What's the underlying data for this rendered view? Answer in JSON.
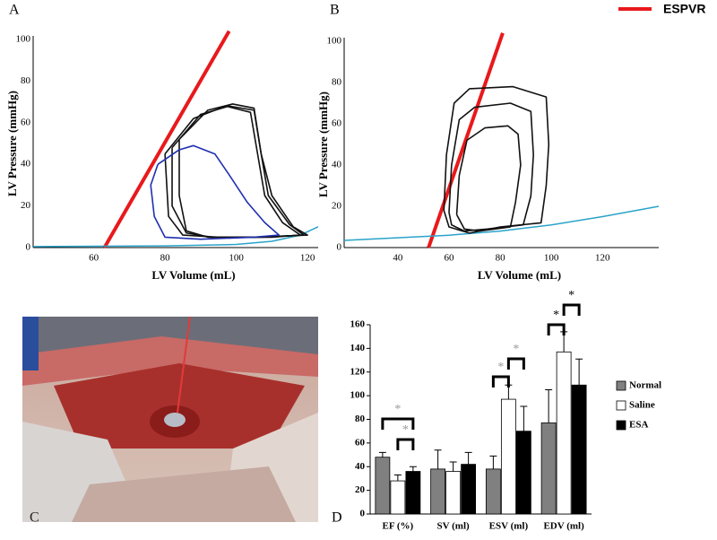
{
  "chart_data": [
    {
      "type": "line",
      "panel": "A",
      "x_label": "LV Volume (mL)",
      "y_label": "LV Pressure (mmHg)",
      "xlim": [
        43,
        123
      ],
      "ylim": [
        0,
        100
      ],
      "xticks": [
        60,
        80,
        100,
        120
      ],
      "yticks": [
        0,
        20,
        40,
        60,
        80,
        100
      ],
      "series": [
        {
          "name": "ESPVR",
          "color": "#e8191c",
          "x": [
            63,
            98
          ],
          "values": [
            0,
            104
          ]
        },
        {
          "color": "#29a3c9",
          "x": [
            43,
            80,
            100,
            110,
            118,
            123
          ],
          "values": [
            0.5,
            0.8,
            1.5,
            3,
            6,
            10
          ]
        },
        {
          "color": "#111111",
          "x": [
            80,
            88,
            97,
            104,
            106,
            108,
            113,
            118,
            110,
            95,
            85,
            81,
            80
          ],
          "values": [
            45,
            62,
            68,
            65,
            45,
            25,
            12,
            6,
            5,
            5,
            6,
            15,
            45
          ]
        },
        {
          "color": "#111111",
          "x": [
            82,
            90,
            98,
            105,
            107,
            109,
            115,
            119,
            107,
            93,
            86,
            82,
            82
          ],
          "values": [
            48,
            64,
            68,
            66,
            45,
            25,
            11,
            6,
            5,
            5,
            7,
            20,
            48
          ]
        },
        {
          "color": "#111111",
          "x": [
            84,
            92,
            99,
            105,
            107,
            110,
            116,
            120,
            105,
            92,
            86,
            84,
            84
          ],
          "values": [
            52,
            66,
            69,
            67,
            45,
            25,
            10,
            6,
            5,
            5,
            8,
            25,
            52
          ]
        },
        {
          "color": "#1f2fb0",
          "x": [
            78,
            84,
            88,
            94,
            98,
            103,
            108,
            112,
            105,
            90,
            80,
            77,
            76,
            78
          ],
          "values": [
            40,
            47,
            49,
            45,
            35,
            22,
            12,
            6,
            5,
            4,
            5,
            15,
            30,
            40
          ]
        }
      ]
    },
    {
      "type": "line",
      "panel": "B",
      "x_label": "LV Volume (mL)",
      "y_label": "LV Pressure (mmHg)",
      "xlim": [
        19,
        142
      ],
      "ylim": [
        0,
        100
      ],
      "xticks": [
        40,
        60,
        80,
        100,
        120
      ],
      "yticks": [
        0,
        20,
        40,
        60,
        80,
        100
      ],
      "series": [
        {
          "color": "#e8191c",
          "x": [
            52,
            81
          ],
          "values": [
            0,
            104
          ]
        },
        {
          "color": "#29a3c9",
          "x": [
            19,
            60,
            80,
            100,
            120,
            142
          ],
          "values": [
            3.5,
            6,
            8,
            11,
            15,
            20
          ]
        },
        {
          "color": "#111111",
          "x": [
            58,
            59,
            62,
            68,
            85,
            98,
            99,
            98,
            96,
            80,
            68,
            60,
            58
          ],
          "values": [
            18,
            45,
            70,
            77,
            78,
            73,
            50,
            30,
            12,
            10,
            7,
            10,
            18
          ]
        },
        {
          "color": "#111111",
          "x": [
            60,
            61,
            64,
            70,
            84,
            92,
            93,
            92,
            89,
            75,
            66,
            61,
            60
          ],
          "values": [
            17,
            40,
            62,
            68,
            70,
            66,
            45,
            25,
            11,
            9,
            8,
            11,
            17
          ]
        },
        {
          "color": "#111111",
          "x": [
            63,
            64,
            67,
            74,
            83,
            87,
            88,
            86,
            84,
            72,
            66,
            63
          ],
          "values": [
            16,
            35,
            52,
            58,
            59,
            55,
            40,
            22,
            10,
            8,
            9,
            16
          ]
        }
      ]
    },
    {
      "type": "bar",
      "panel": "D",
      "categories": [
        "EF (%)",
        "SV (ml)",
        "ESV (ml)",
        "EDV (ml)"
      ],
      "ylim": [
        0,
        160
      ],
      "yticks": [
        0,
        20,
        40,
        60,
        80,
        100,
        120,
        140,
        160
      ],
      "series": [
        {
          "name": "Normal",
          "color": "#808080",
          "values": [
            48,
            38,
            38,
            77
          ],
          "errors": [
            4,
            16,
            11,
            28
          ]
        },
        {
          "name": "Saline",
          "color": "#ffffff",
          "values": [
            28,
            36,
            97,
            137
          ],
          "errors": [
            5,
            8,
            12,
            17
          ]
        },
        {
          "name": "ESA",
          "color": "#000000",
          "values": [
            36,
            42,
            70,
            109
          ],
          "errors": [
            4,
            10,
            21,
            22
          ]
        }
      ],
      "annotations": [
        "*",
        "*",
        "*",
        "*",
        "*",
        "*"
      ]
    }
  ],
  "photo": {
    "panel": "C"
  }
}
